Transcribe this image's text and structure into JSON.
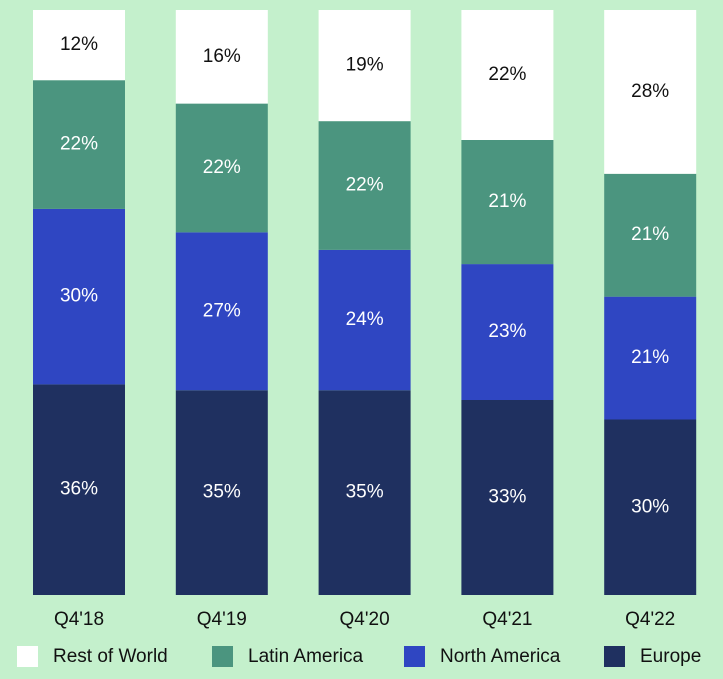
{
  "chart_data": {
    "type": "stacked_bar",
    "categories": [
      "Q4'18",
      "Q4'19",
      "Q4'20",
      "Q4'21",
      "Q4'22"
    ],
    "series": [
      {
        "name": "Europe",
        "color": "#1f3060",
        "values": [
          36,
          35,
          35,
          33,
          30
        ],
        "value_labels": [
          "36%",
          "35%",
          "35%",
          "33%",
          "30%"
        ]
      },
      {
        "name": "North America",
        "color": "#2f46c2",
        "values": [
          30,
          27,
          24,
          23,
          21
        ],
        "value_labels": [
          "30%",
          "27%",
          "24%",
          "23%",
          "21%"
        ]
      },
      {
        "name": "Latin America",
        "color": "#4b957f",
        "values": [
          22,
          22,
          22,
          21,
          21
        ],
        "value_labels": [
          "22%",
          "22%",
          "22%",
          "21%",
          "21%"
        ]
      },
      {
        "name": "Rest of World",
        "color": "#ffffff",
        "values": [
          12,
          16,
          19,
          22,
          28
        ],
        "value_labels": [
          "12%",
          "16%",
          "19%",
          "22%",
          "28%"
        ]
      }
    ],
    "legend": "bottom"
  }
}
